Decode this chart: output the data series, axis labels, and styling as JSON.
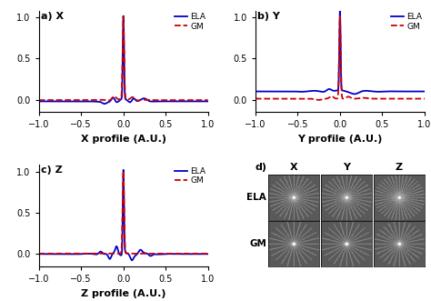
{
  "panel_labels": [
    "a) X",
    "b) Y",
    "c) Z"
  ],
  "xlabels": [
    "X profile (A.U.)",
    "Y profile (A.U.)",
    "Z profile (A.U.)"
  ],
  "ylim": [
    -0.15,
    1.08
  ],
  "xlim": [
    -1,
    1
  ],
  "yticks": [
    0,
    0.5,
    1
  ],
  "ela_color": "#0000cc",
  "gm_color": "#cc0000",
  "legend_ela": "ELA",
  "legend_gm": "GM",
  "image_col_labels": [
    "X",
    "Y",
    "Z"
  ],
  "image_row_labels": [
    "ELA",
    "GM"
  ],
  "d_label": "d)",
  "line_width": 1.3,
  "spoke_color": 0.62,
  "bg_color": 0.35,
  "n_spokes_ela": [
    16,
    16,
    20
  ],
  "n_spokes_gm": [
    12,
    12,
    14
  ],
  "font_size_tick": 7,
  "font_size_label": 8,
  "font_size_axis": 8
}
